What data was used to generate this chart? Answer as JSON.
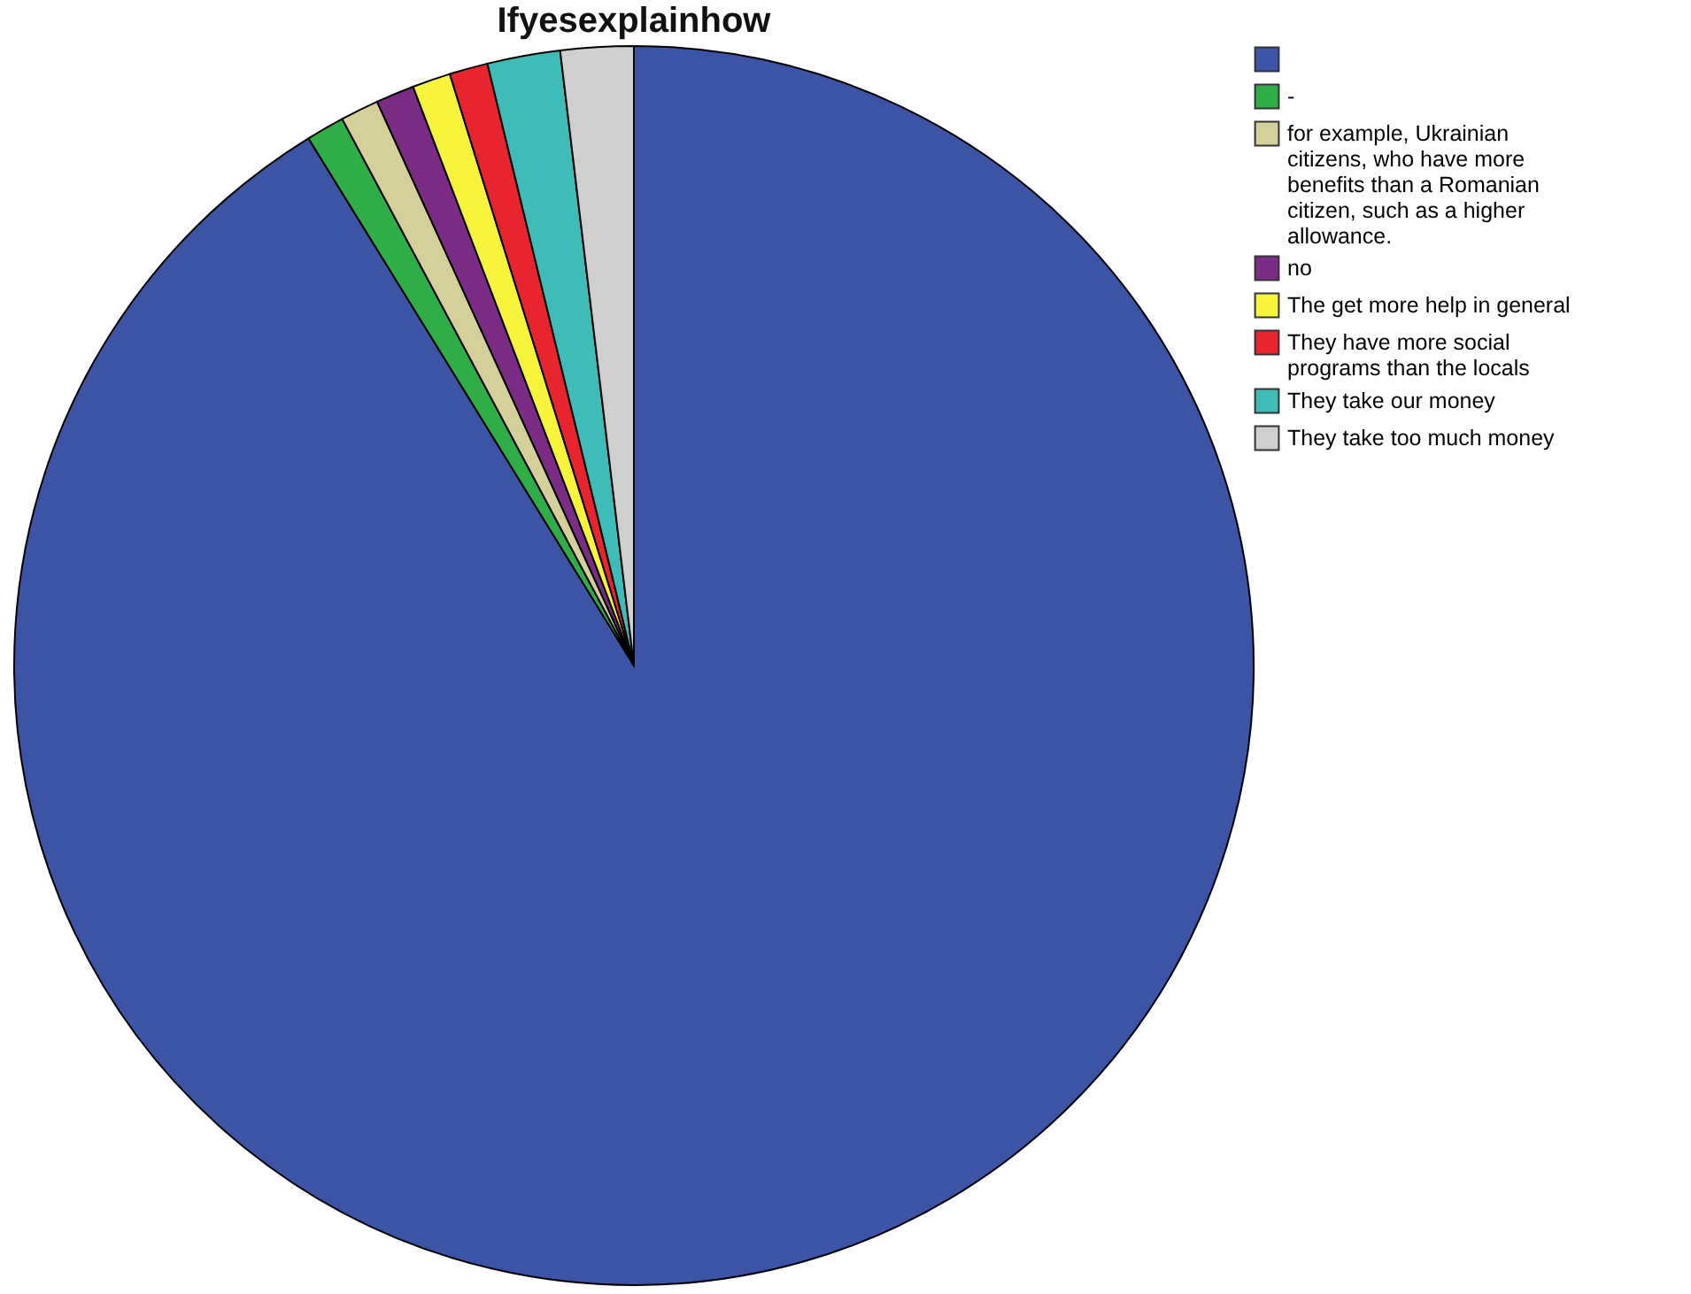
{
  "chart_data": {
    "type": "pie",
    "title": "Ifyesexplainhow",
    "categories": [
      null,
      "-",
      "for example, Ukrainian citizens, who have more benefits than a Romanian citizen, such as a higher allowance.",
      "no",
      "The get more help in general",
      "They have more social programs than the locals",
      "They take our money",
      "They take too much money"
    ],
    "values": [
      91.2,
      1.0,
      1.0,
      1.0,
      1.0,
      1.0,
      1.9,
      1.9
    ],
    "colors": [
      "#3b54a5",
      "#2fae48",
      "#d4cf9b",
      "#7b2d85",
      "#f8f43c",
      "#e8252f",
      "#3fbcb8",
      "#cfcfcf"
    ],
    "legend": "top right"
  }
}
